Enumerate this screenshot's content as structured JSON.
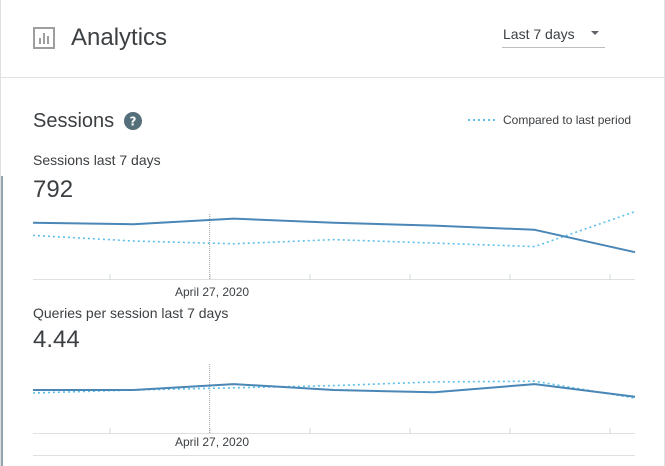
{
  "header": {
    "title": "Analytics",
    "app_icon": "bar-chart-icon",
    "date_range": {
      "selected": "Last 7 days",
      "caret_icon": "caret-down-icon"
    }
  },
  "sessions_card": {
    "title": "Sessions",
    "help_icon": "help-circle-icon",
    "legend": {
      "compare_label": "Compared to last period"
    }
  },
  "colors": {
    "line_current": "#4a86b6",
    "line_compare": "#5bc0eb",
    "help_icon": "#546e7a",
    "app_icon": "#9e9e9e"
  },
  "chart_data": [
    {
      "type": "line",
      "title": "Sessions last 7 days",
      "value_label": "792",
      "hover_label": "April 27, 2020",
      "hover_index": 2,
      "x": [
        0,
        1,
        2,
        3,
        4,
        5,
        6
      ],
      "ylim": [
        0,
        100
      ],
      "series": [
        {
          "role": "current",
          "values": [
            76,
            74,
            82,
            76,
            72,
            66,
            34
          ]
        },
        {
          "role": "compare",
          "values": [
            58,
            50,
            46,
            52,
            47,
            42,
            92
          ]
        }
      ]
    },
    {
      "type": "line",
      "title": "Queries per session last 7 days",
      "value_label": "4.44",
      "hover_label": "April 27, 2020",
      "hover_index": 2,
      "x": [
        0,
        1,
        2,
        3,
        4,
        5,
        6
      ],
      "ylim": [
        0,
        100
      ],
      "series": [
        {
          "role": "current",
          "values": [
            54,
            54,
            62,
            54,
            51,
            62,
            45
          ]
        },
        {
          "role": "compare",
          "values": [
            50,
            54,
            57,
            60,
            65,
            66,
            43
          ]
        }
      ]
    }
  ]
}
